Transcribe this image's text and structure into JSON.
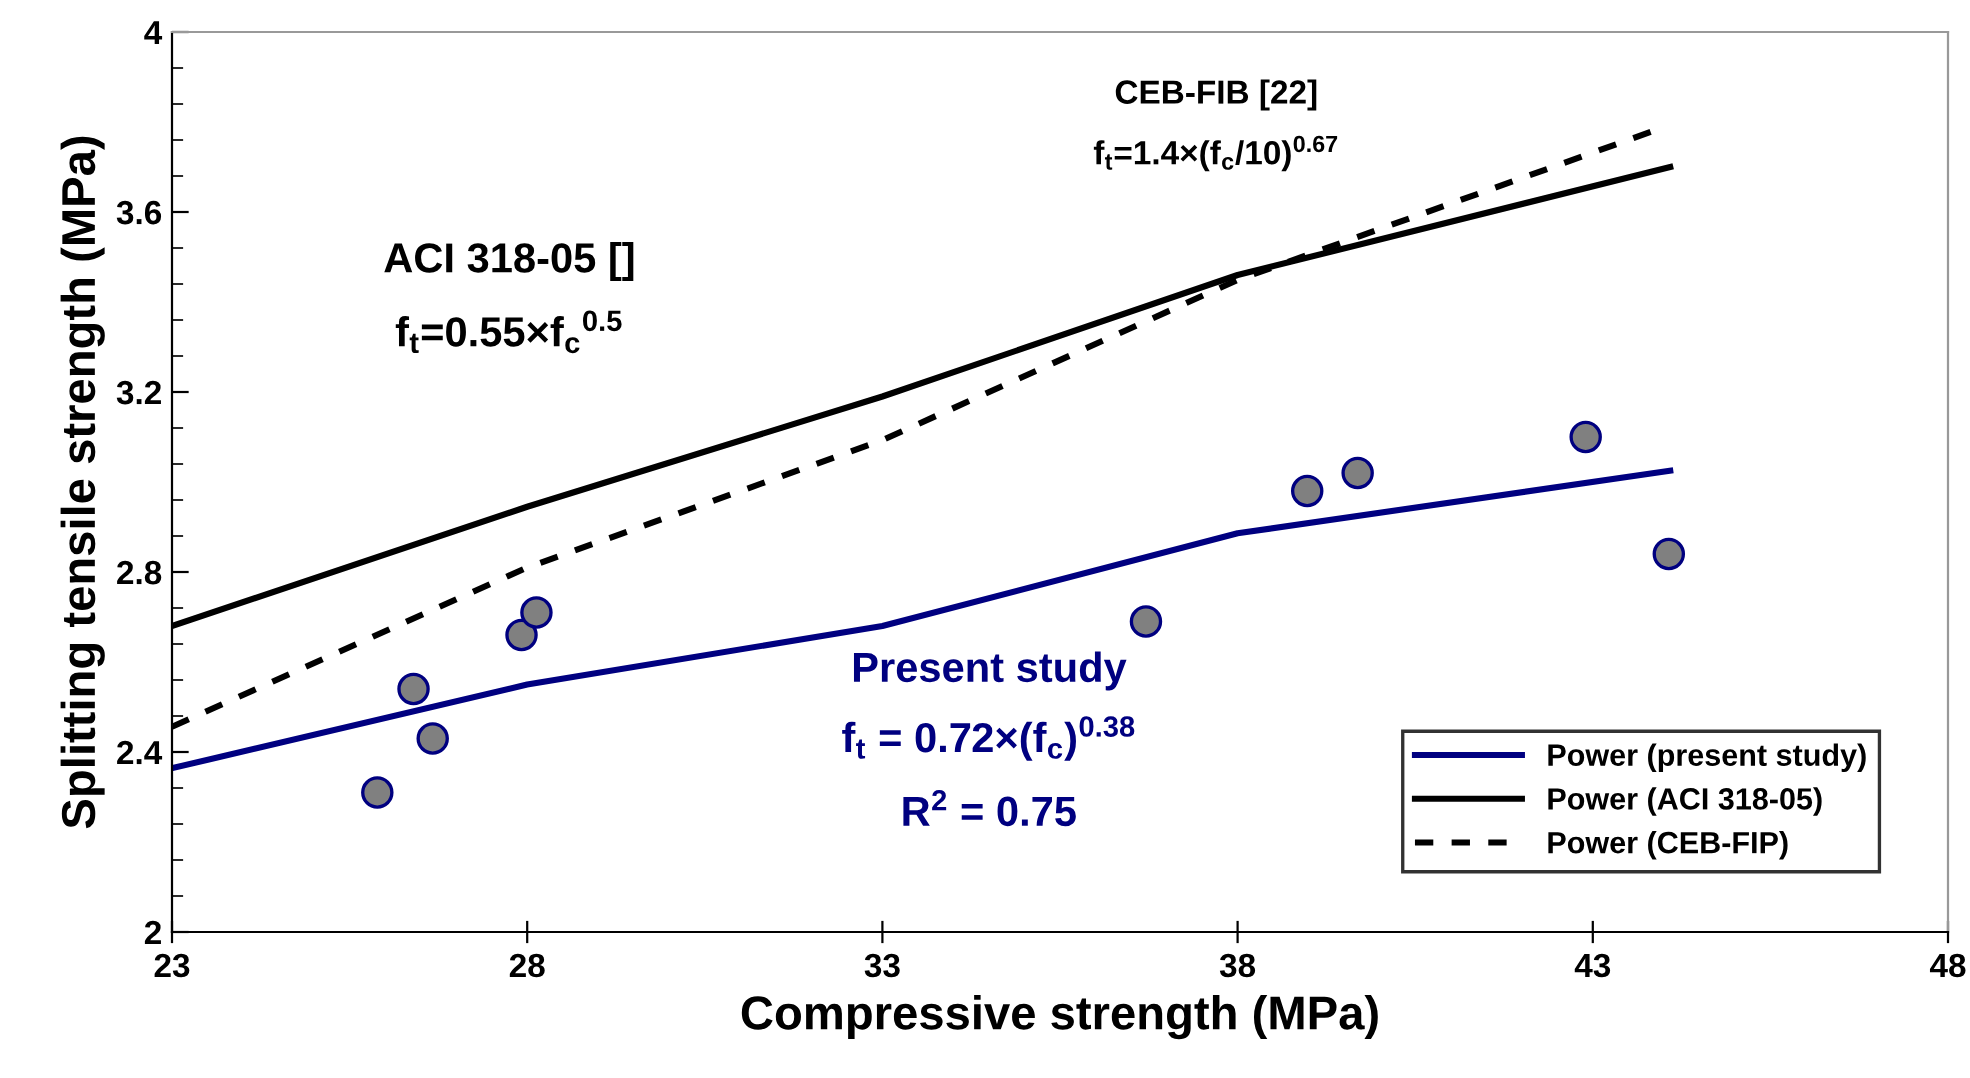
{
  "chart_data": {
    "type": "line",
    "xlabel": "Compressive strength (MPa)",
    "ylabel": "Splitting tensile strength (MPa)",
    "xlim": [
      23,
      48
    ],
    "xticks": [
      23,
      28,
      33,
      38,
      43,
      48
    ],
    "ylim": [
      2,
      4
    ],
    "yticks": [
      2,
      {
        "value": 2.4,
        "label": "2.4"
      },
      {
        "value": 2.8,
        "label": "2.8"
      },
      {
        "value": 3.2,
        "label": "3.2"
      },
      {
        "value": 3.6,
        "label": "3.6"
      },
      4
    ],
    "grid": false,
    "legend": "bottom right",
    "series": [
      {
        "type": "scatter",
        "color": "#808080",
        "marker": "circle",
        "x": [
          25.89,
          26.4,
          26.67,
          27.92,
          28.13,
          36.71,
          38.98,
          39.69,
          42.9,
          44.07
        ],
        "values": [
          2.31,
          2.54,
          2.43,
          2.66,
          2.71,
          2.69,
          2.98,
          3.02,
          3.1,
          2.84
        ]
      },
      {
        "name": "Power (present study)",
        "color": "#000080",
        "line_style": "solid",
        "marker": "none",
        "x": [
          23,
          28,
          33,
          38,
          44.09
        ],
        "values": [
          2.364,
          2.55,
          2.68,
          2.886,
          3.025
        ]
      },
      {
        "name": "Power (ACI 318-05)",
        "color": "#000000",
        "line_style": "solid",
        "marker": "none",
        "x": [
          23,
          28,
          33,
          38,
          44.09
        ],
        "values": [
          2.68,
          2.945,
          3.19,
          3.46,
          3.7
        ]
      },
      {
        "name": "Power (CEB-FIP)",
        "color": "#000000",
        "line_style": "dashed",
        "marker": "none",
        "x": [
          23,
          28,
          33,
          38,
          43.85
        ],
        "values": [
          2.456,
          2.81,
          3.093,
          3.449,
          3.78
        ]
      }
    ],
    "annotations": [
      "ACI 318-05 []",
      "f$_{t}$=0.55×f$_{c}$$^{0.5}$",
      "CEB-FIB [22]",
      "f$_{t}$=1.4×(f$_{c}$/10)$^{0.67}$",
      "Present study",
      "f$_{t}$ = 0.72×(f$_{c}$)$^{0.38}$",
      "R$^{2}$ = 0.75"
    ]
  }
}
